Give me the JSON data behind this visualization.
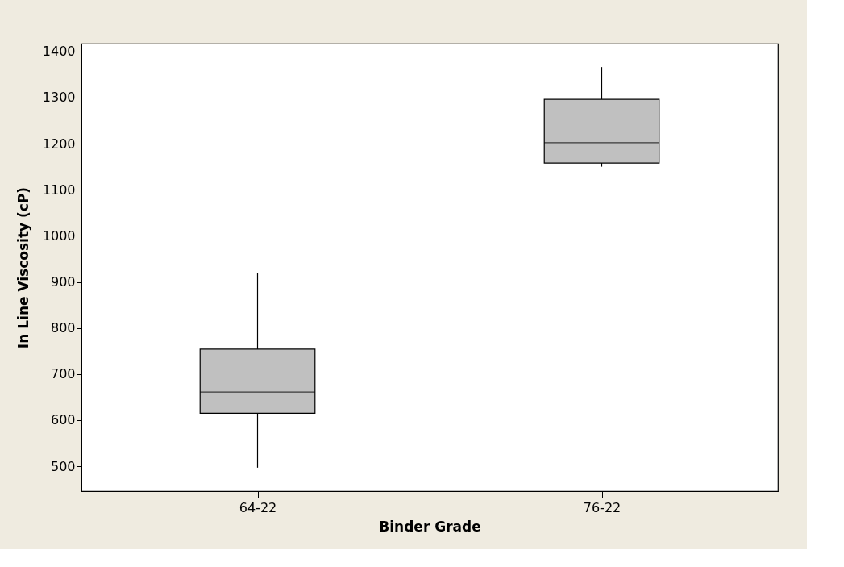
{
  "chart_data": {
    "type": "box",
    "xlabel": "Binder Grade",
    "ylabel": "In Line Viscosity (cP)",
    "categories": [
      "64-22",
      "76-22"
    ],
    "boxes": [
      {
        "low": 497,
        "q1": 615,
        "median": 661,
        "q3": 754,
        "high": 920
      },
      {
        "low": 1150,
        "q1": 1158,
        "median": 1202,
        "q3": 1296,
        "high": 1366
      }
    ],
    "color": "#c0c0c0",
    "ylim": [
      446,
      1417
    ],
    "yticks": [
      500,
      600,
      700,
      800,
      900,
      1000,
      1100,
      1200,
      1300,
      1400
    ],
    "grid": false
  }
}
